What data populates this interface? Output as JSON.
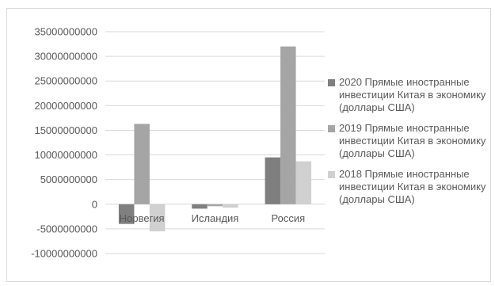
{
  "chart_data": {
    "type": "bar",
    "categories": [
      "Норвегия",
      "Исландия",
      "Россия"
    ],
    "series": [
      {
        "name": "2020 Прямые иностранные инвестиции Китая в экономику (доллары США)",
        "color": "#7f7f7f",
        "values": [
          -4000000000,
          -900000000,
          9500000000
        ]
      },
      {
        "name": "2019 Прямые иностранные инвестиции Китая в экономику (доллары США)",
        "color": "#a5a5a5",
        "values": [
          16300000000,
          -400000000,
          32000000000
        ]
      },
      {
        "name": "2018 Прямые иностранные инвестиции Китая в экономику (доллары США)",
        "color": "#d0d0d0",
        "values": [
          -5500000000,
          -700000000,
          8700000000
        ]
      }
    ],
    "y_ticks": [
      "35000000000",
      "30000000000",
      "25000000000",
      "20000000000",
      "15000000000",
      "10000000000",
      "5000000000",
      "0",
      "-5000000000",
      "-10000000000"
    ],
    "ylim": [
      -10000000000,
      35000000000
    ],
    "grid": true,
    "legend_position": "right"
  }
}
